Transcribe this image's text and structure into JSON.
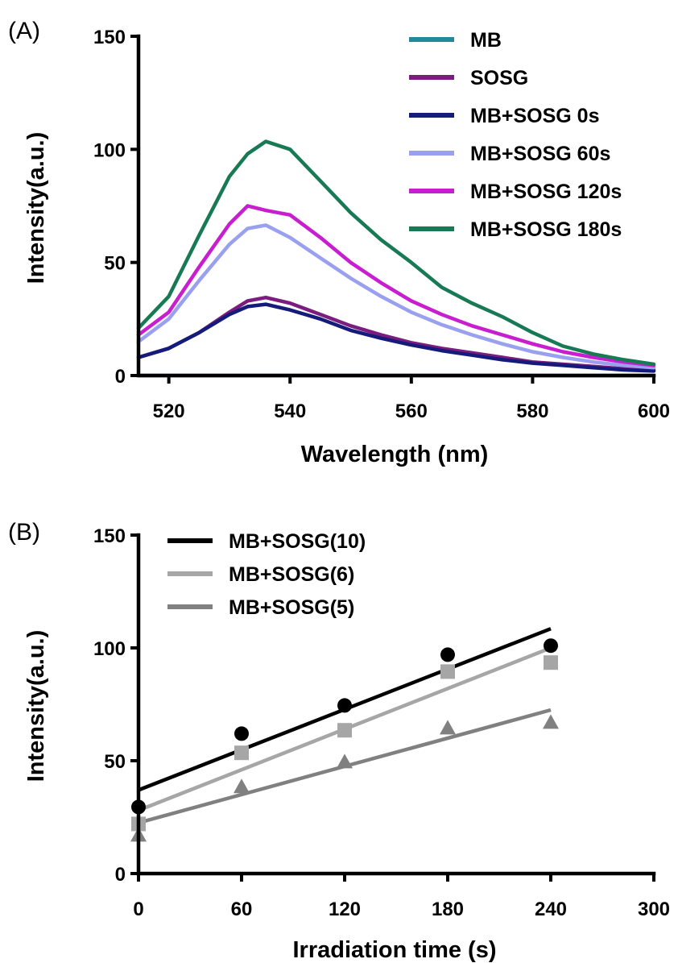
{
  "chart_data": [
    {
      "panel_label": "(A)",
      "type": "line",
      "xlabel": "Wavelength (nm)",
      "ylabel": "Intensity(a.u.)",
      "xlim": [
        515,
        600
      ],
      "ylim": [
        0,
        150
      ],
      "xticks": [
        520,
        540,
        560,
        580,
        600
      ],
      "yticks": [
        0,
        50,
        100,
        150
      ],
      "legend_position": "top-right",
      "series": [
        {
          "name": "MB",
          "color": "#1f8a9a",
          "x": [
            515,
            520,
            530,
            540,
            550,
            560,
            570,
            580,
            590,
            600
          ],
          "y": [
            0,
            0,
            0,
            0,
            0,
            0,
            0,
            0,
            0,
            0
          ]
        },
        {
          "name": "SOSG",
          "color": "#7b1c7e",
          "x": [
            515,
            520,
            525,
            530,
            533,
            536,
            540,
            545,
            550,
            555,
            560,
            565,
            570,
            575,
            580,
            585,
            590,
            595,
            600
          ],
          "y": [
            8,
            12,
            19,
            28,
            33,
            34.5,
            32,
            27,
            22,
            18,
            14.5,
            12,
            10,
            8,
            6,
            5,
            4,
            3,
            2.5
          ]
        },
        {
          "name": "MB+SOSG 0s",
          "color": "#141b7a",
          "x": [
            515,
            520,
            525,
            530,
            533,
            536,
            540,
            545,
            550,
            555,
            560,
            565,
            570,
            575,
            580,
            585,
            590,
            595,
            600
          ],
          "y": [
            8,
            12,
            19,
            27,
            30.5,
            31.5,
            29,
            25,
            20,
            16.5,
            13.5,
            11,
            9,
            7,
            5.5,
            4.5,
            3.5,
            2.5,
            2
          ]
        },
        {
          "name": "MB+SOSG 60s",
          "color": "#9aa0f0",
          "x": [
            515,
            520,
            525,
            530,
            533,
            536,
            540,
            545,
            550,
            555,
            560,
            565,
            570,
            575,
            580,
            585,
            590,
            595,
            600
          ],
          "y": [
            15,
            25,
            42,
            58,
            65,
            66.5,
            61,
            52,
            43,
            35,
            28,
            22.5,
            18,
            14,
            10.5,
            8,
            6,
            4.5,
            3.5
          ]
        },
        {
          "name": "MB+SOSG 120s",
          "color": "#c81ecf",
          "x": [
            515,
            520,
            525,
            530,
            533,
            536,
            540,
            545,
            550,
            555,
            560,
            565,
            570,
            575,
            580,
            585,
            590,
            595,
            600
          ],
          "y": [
            18,
            28,
            48,
            67,
            75,
            73,
            71,
            61,
            50,
            41,
            33,
            27,
            22,
            18,
            14,
            10.5,
            8,
            6,
            4.5
          ]
        },
        {
          "name": "MB+SOSG 180s",
          "color": "#187a55",
          "x": [
            515,
            520,
            525,
            530,
            533,
            536,
            540,
            545,
            550,
            555,
            560,
            565,
            570,
            575,
            580,
            585,
            590,
            595,
            600
          ],
          "y": [
            21,
            35,
            62,
            88,
            98,
            103.5,
            100,
            86,
            72,
            60,
            50,
            39,
            32,
            26,
            19,
            13,
            9.5,
            7,
            5
          ]
        }
      ]
    },
    {
      "panel_label": "(B)",
      "type": "scatter",
      "xlabel": "Irradiation time (s)",
      "ylabel": "Intensity(a.u.)",
      "xlim": [
        0,
        300
      ],
      "ylim": [
        0,
        150
      ],
      "xticks": [
        0,
        60,
        120,
        180,
        240,
        300
      ],
      "yticks": [
        0,
        50,
        100,
        150
      ],
      "legend_position": "top-left",
      "series": [
        {
          "name": "MB+SOSG(10)",
          "color": "#000000",
          "marker": "circle",
          "x": [
            0,
            60,
            120,
            180,
            240
          ],
          "y": [
            29.5,
            62,
            74.5,
            97,
            101
          ],
          "fit": [
            37,
            108.5
          ]
        },
        {
          "name": "MB+SOSG(6)",
          "color": "#a6a6a6",
          "marker": "square",
          "x": [
            0,
            60,
            120,
            180,
            240
          ],
          "y": [
            22,
            53.5,
            63.5,
            89.5,
            93.5
          ],
          "fit": [
            28,
            100
          ]
        },
        {
          "name": "MB+SOSG(5)",
          "color": "#808080",
          "marker": "triangle",
          "x": [
            0,
            60,
            120,
            180,
            240
          ],
          "y": [
            17,
            38.5,
            49.5,
            64.5,
            67
          ],
          "fit": [
            22.5,
            72.5
          ]
        }
      ]
    }
  ]
}
